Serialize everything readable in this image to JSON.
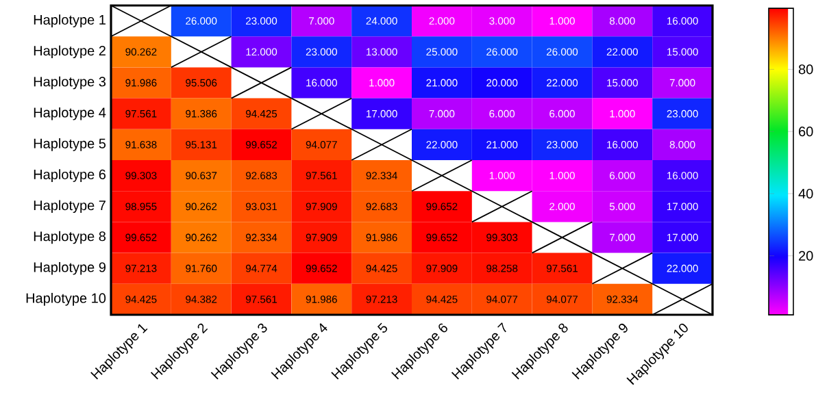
{
  "chart_data": {
    "type": "heatmap",
    "categories": [
      "Haplotype 1",
      "Haplotype 2",
      "Haplotype 3",
      "Haplotype 4",
      "Haplotype 5",
      "Haplotype 6",
      "Haplotype 7",
      "Haplotype 8",
      "Haplotype 9",
      "Haplotype 10"
    ],
    "y_categories": [
      "Haplotype 1",
      "Haplotype 2",
      "Haplotype 3",
      "Haplotype 4",
      "Haplotype 5",
      "Haplotype 6",
      "Haplotype 7",
      "Haplotype 8",
      "Haplotype 9",
      "Haplotype 10"
    ],
    "cells": [
      [
        null,
        26,
        23,
        7,
        24,
        2,
        3,
        1,
        8,
        16
      ],
      [
        90.262,
        null,
        12,
        23,
        13,
        25,
        26,
        26,
        22,
        15
      ],
      [
        91.986,
        95.506,
        null,
        16,
        1,
        21,
        20,
        22,
        15,
        7
      ],
      [
        97.561,
        91.386,
        94.425,
        null,
        17,
        7,
        6,
        6,
        1,
        23
      ],
      [
        91.638,
        95.131,
        99.652,
        94.077,
        null,
        22,
        21,
        23,
        16,
        8
      ],
      [
        99.303,
        90.637,
        92.683,
        97.561,
        92.334,
        null,
        1,
        1,
        6,
        16
      ],
      [
        98.955,
        90.262,
        93.031,
        97.909,
        92.683,
        99.652,
        null,
        2,
        5,
        17
      ],
      [
        99.652,
        90.262,
        92.334,
        97.909,
        91.986,
        99.652,
        99.303,
        null,
        7,
        17
      ],
      [
        97.213,
        91.76,
        94.774,
        99.652,
        94.425,
        97.909,
        98.258,
        97.561,
        null,
        22
      ],
      [
        94.425,
        94.382,
        97.561,
        91.986,
        97.213,
        94.425,
        94.077,
        94.077,
        92.334,
        null
      ]
    ],
    "cell_labels": [
      [
        null,
        "26.000",
        "23.000",
        "7.000",
        "24.000",
        "2.000",
        "3.000",
        "1.000",
        "8.000",
        "16.000"
      ],
      [
        "90.262",
        null,
        "12.000",
        "23.000",
        "13.000",
        "25.000",
        "26.000",
        "26.000",
        "22.000",
        "15.000"
      ],
      [
        "91.986",
        "95.506",
        null,
        "16.000",
        "1.000",
        "21.000",
        "20.000",
        "22.000",
        "15.000",
        "7.000"
      ],
      [
        "97.561",
        "91.386",
        "94.425",
        null,
        "17.000",
        "7.000",
        "6.000",
        "6.000",
        "1.000",
        "23.000"
      ],
      [
        "91.638",
        "95.131",
        "99.652",
        "94.077",
        null,
        "22.000",
        "21.000",
        "23.000",
        "16.000",
        "8.000"
      ],
      [
        "99.303",
        "90.637",
        "92.683",
        "97.561",
        "92.334",
        null,
        "1.000",
        "1.000",
        "6.000",
        "16.000"
      ],
      [
        "98.955",
        "90.262",
        "93.031",
        "97.909",
        "92.683",
        "99.652",
        null,
        "2.000",
        "5.000",
        "17.000"
      ],
      [
        "99.652",
        "90.262",
        "92.334",
        "97.909",
        "91.986",
        "99.652",
        "99.303",
        null,
        "7.000",
        "17.000"
      ],
      [
        "97.213",
        "91.760",
        "94.774",
        "99.652",
        "94.425",
        "97.909",
        "98.258",
        "97.561",
        null,
        "22.000"
      ],
      [
        "94.425",
        "94.382",
        "97.561",
        "91.986",
        "97.213",
        "94.425",
        "94.077",
        "94.077",
        "92.334",
        null
      ]
    ],
    "clim": [
      1,
      99.652
    ],
    "cticks": [
      20,
      40,
      60,
      80
    ]
  }
}
